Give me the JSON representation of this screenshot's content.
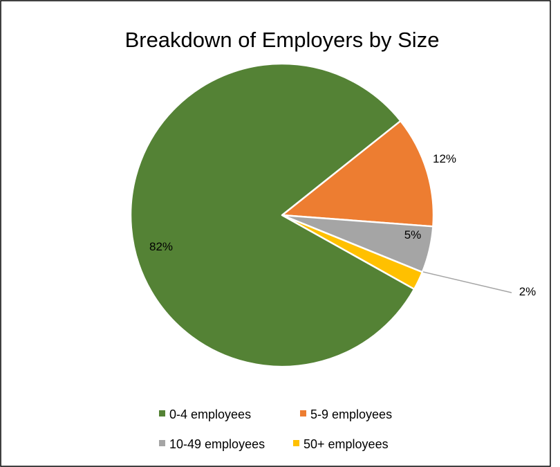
{
  "chart_data": {
    "type": "pie",
    "title": "Breakdown of Employers by Size",
    "slices": [
      {
        "label": "0-4 employees",
        "value": 82,
        "display": "82%",
        "color": "#548235"
      },
      {
        "label": "5-9 employees",
        "value": 12,
        "display": "12%",
        "color": "#ED7D31"
      },
      {
        "label": "10-49 employees",
        "value": 5,
        "display": "5%",
        "color": "#A5A5A5"
      },
      {
        "label": "50+ employees",
        "value": 2,
        "display": "2%",
        "color": "#FFC000"
      }
    ],
    "legend_position": "bottom",
    "start_angle": "clockwise from 12 o'clock"
  }
}
